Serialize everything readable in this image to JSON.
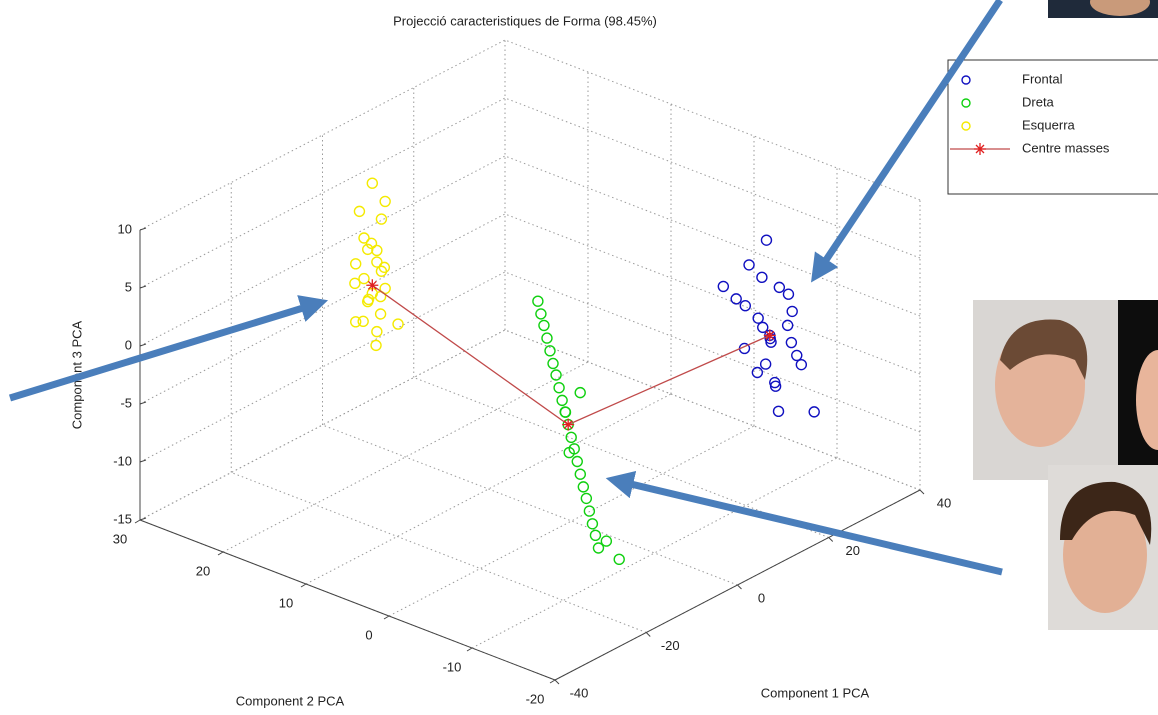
{
  "chart_data": {
    "type": "scatter3d",
    "title": "Projecció caracteristiques de Forma (98.45%)",
    "x_label": "Component 1 PCA",
    "y_label": "Component 2 PCA",
    "z_label": "Component 3 PCA",
    "xlim": [
      -40,
      40
    ],
    "ylim": [
      -20,
      30
    ],
    "zlim": [
      -15,
      10
    ],
    "xticks": [
      -40,
      -20,
      0,
      20,
      40
    ],
    "yticks": [
      -20,
      -10,
      0,
      10,
      20,
      30
    ],
    "zticks": [
      -15,
      -10,
      -5,
      0,
      5,
      10
    ],
    "grid": true,
    "legend": "top-right",
    "series": [
      {
        "name": "Frontal",
        "color": "#1010c0",
        "marker": "circle",
        "x": [
          30,
          28,
          29,
          31,
          27,
          32,
          30,
          29,
          31,
          33,
          28,
          30,
          32,
          31,
          29,
          27,
          33,
          30,
          26,
          34,
          35,
          30,
          28,
          31,
          29
        ],
        "y": [
          -7.4,
          -6,
          -7,
          -8,
          -5,
          -9,
          -6,
          -8,
          -7,
          -9,
          -7,
          -8,
          -7,
          -9,
          -5,
          -6,
          -8,
          -10,
          -4,
          -9,
          -10,
          -7,
          -8,
          -6,
          -9
        ],
        "z": [
          -3.1,
          3,
          2,
          1,
          0,
          -1,
          -2,
          -3,
          -4,
          -5,
          -6,
          -7,
          -8,
          -2,
          -1,
          -4,
          0,
          -3,
          1,
          -6,
          -10,
          5,
          -5,
          -3,
          -9
        ]
      },
      {
        "name": "Dreta",
        "color": "#10d010",
        "marker": "circle",
        "x": [
          -3,
          -2.7,
          -2.4,
          -2.1,
          -1.8,
          -1.5,
          -1.2,
          -0.9,
          -0.6,
          -0.3,
          0,
          0.3,
          0.6,
          0.9,
          1.2,
          1.5,
          1.8,
          2.1,
          2.4,
          2.7,
          3,
          0.5,
          -0.5,
          1,
          4,
          5
        ],
        "y": [
          2.4,
          2.2,
          2,
          1.8,
          1.6,
          1.4,
          1.2,
          1,
          0.8,
          0.6,
          0.4,
          0.2,
          0,
          -0.2,
          -0.4,
          -0.6,
          -0.8,
          -1,
          -1.2,
          -1.4,
          -1.6,
          1,
          0,
          -0.5,
          -2,
          -3
        ],
        "z": [
          3.9,
          2.8,
          1.8,
          0.7,
          -0.4,
          -1.5,
          -2.5,
          -3.6,
          -4.7,
          -5.7,
          -6.8,
          -7.9,
          -8.9,
          -10,
          -11.1,
          -12.2,
          -13.2,
          -14.3,
          -15.4,
          -16.4,
          -17.5,
          -6,
          -9,
          -4,
          -17,
          -18.5
        ]
      },
      {
        "name": "Esquerra",
        "color": "#f4ea00",
        "marker": "circle",
        "x": [
          0,
          1,
          -1,
          2,
          -2,
          0,
          1,
          -1,
          0,
          2,
          -2,
          1,
          0,
          -1,
          1,
          0,
          -2,
          2,
          0,
          1,
          -1,
          0,
          1,
          -1,
          0
        ],
        "y": [
          24,
          23,
          25,
          24,
          23,
          25,
          24,
          22,
          26,
          24,
          25,
          23,
          24,
          24,
          25,
          23,
          24,
          22,
          26,
          24,
          23,
          25,
          24,
          24,
          23
        ],
        "z": [
          7.5,
          6,
          5,
          4,
          3,
          2.5,
          1.5,
          1,
          0,
          -0.5,
          -1,
          -1.5,
          -2,
          -2.5,
          -3,
          -3.5,
          -4,
          -4.5,
          -5,
          -5.5,
          -6,
          -1,
          0.5,
          2,
          -2
        ]
      },
      {
        "name": "Centre masses",
        "color": "#c04a4a",
        "marker": "asterisk",
        "x": [
          0,
          0,
          30
        ],
        "y": [
          24,
          0.4,
          -7.4
        ],
        "z": [
          -1.3,
          -6.8,
          -3.1
        ]
      }
    ]
  }
}
